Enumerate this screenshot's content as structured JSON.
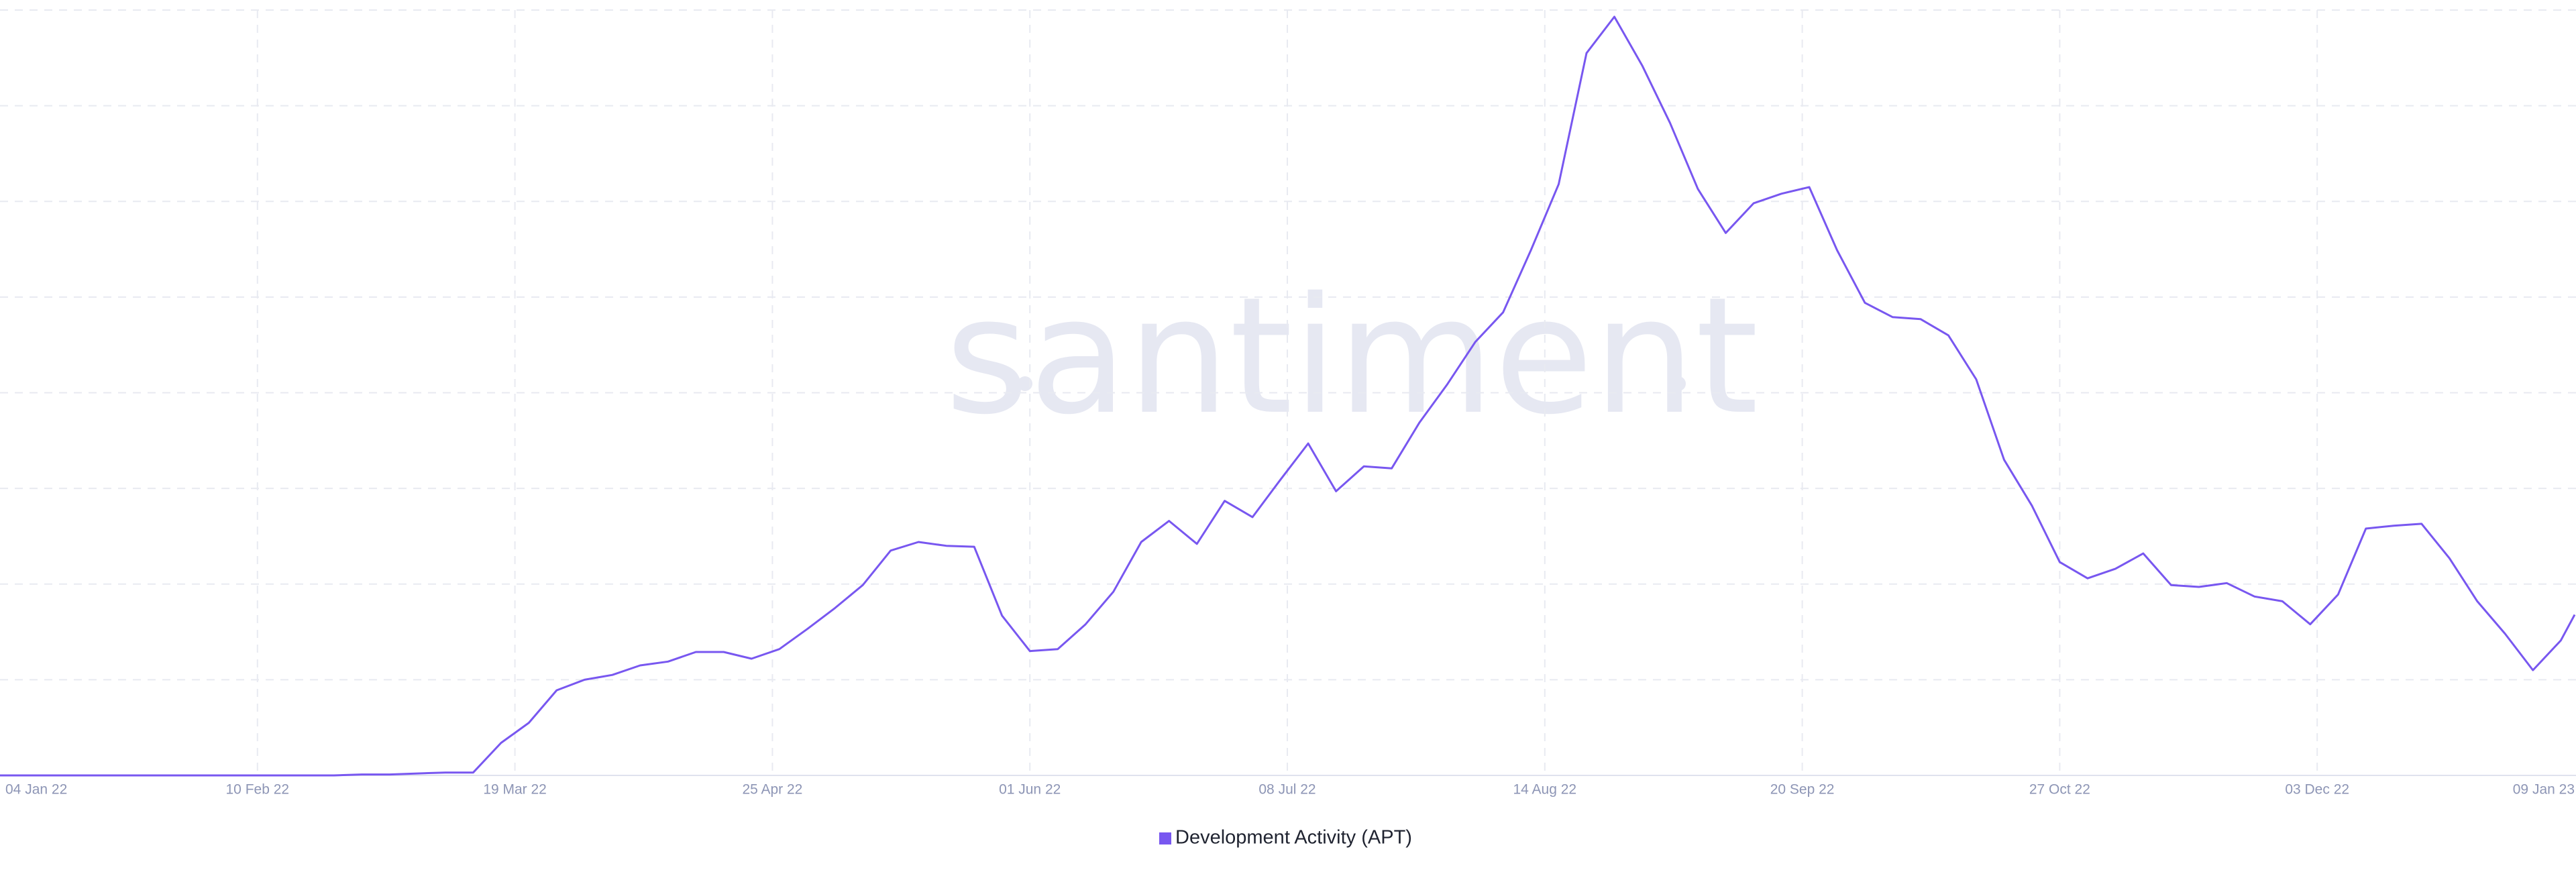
{
  "chart_data": {
    "type": "line",
    "watermark": "santiment",
    "x": [
      "04 Jan 22",
      "08 Jan 22",
      "12 Jan 22",
      "16 Jan 22",
      "20 Jan 22",
      "24 Jan 22",
      "28 Jan 22",
      "01 Feb 22",
      "05 Feb 22",
      "09 Feb 22",
      "13 Feb 22",
      "17 Feb 22",
      "21 Feb 22",
      "25 Feb 22",
      "01 Mar 22",
      "05 Mar 22",
      "09 Mar 22",
      "13 Mar 22",
      "17 Mar 22",
      "21 Mar 22",
      "25 Mar 22",
      "29 Mar 22",
      "02 Apr 22",
      "06 Apr 22",
      "10 Apr 22",
      "14 Apr 22",
      "18 Apr 22",
      "22 Apr 22",
      "26 Apr 22",
      "30 Apr 22",
      "04 May 22",
      "08 May 22",
      "12 May 22",
      "16 May 22",
      "20 May 22",
      "24 May 22",
      "28 May 22",
      "01 Jun 22",
      "05 Jun 22",
      "09 Jun 22",
      "13 Jun 22",
      "17 Jun 22",
      "21 Jun 22",
      "25 Jun 22",
      "29 Jun 22",
      "03 Jul 22",
      "07 Jul 22",
      "11 Jul 22",
      "15 Jul 22",
      "19 Jul 22",
      "23 Jul 22",
      "27 Jul 22",
      "31 Jul 22",
      "04 Aug 22",
      "08 Aug 22",
      "12 Aug 22",
      "16 Aug 22",
      "20 Aug 22",
      "24 Aug 22",
      "28 Aug 22",
      "01 Sep 22",
      "05 Sep 22",
      "09 Sep 22",
      "13 Sep 22",
      "17 Sep 22",
      "21 Sep 22",
      "25 Sep 22",
      "29 Sep 22",
      "03 Oct 22",
      "07 Oct 22",
      "11 Oct 22",
      "15 Oct 22",
      "19 Oct 22",
      "23 Oct 22",
      "27 Oct 22",
      "31 Oct 22",
      "04 Nov 22",
      "08 Nov 22",
      "12 Nov 22",
      "16 Nov 22",
      "20 Nov 22",
      "24 Nov 22",
      "28 Nov 22",
      "02 Dec 22",
      "06 Dec 22",
      "10 Dec 22",
      "14 Dec 22",
      "18 Dec 22",
      "22 Dec 22",
      "26 Dec 22",
      "30 Dec 22",
      "03 Jan 23",
      "07 Jan 23",
      "09 Jan 23"
    ],
    "series": [
      {
        "name": "Development Activity (APT)",
        "color": "#7857f0",
        "values": [
          0,
          0,
          0,
          0,
          0,
          0,
          0,
          0,
          0,
          0,
          0,
          0,
          0,
          1,
          1,
          2,
          3,
          3,
          34,
          55,
          89,
          100,
          105,
          115,
          119,
          129,
          129,
          122,
          132,
          153,
          175,
          199,
          235,
          244,
          240,
          239,
          167,
          130,
          132,
          158,
          192,
          244,
          266,
          242,
          287,
          270,
          309,
          347,
          297,
          323,
          321,
          369,
          409,
          453,
          484,
          549,
          618,
          755,
          793,
          742,
          682,
          613,
          567,
          598,
          608,
          615,
          549,
          494,
          479,
          477,
          460,
          414,
          330,
          282,
          223,
          206,
          216,
          232,
          199,
          197,
          201,
          187,
          182,
          158,
          189,
          258,
          261,
          263,
          227,
          182,
          148,
          110,
          141,
          168
        ]
      }
    ],
    "xlim": [
      "04 Jan 22",
      "09 Jan 23"
    ],
    "xticks": [
      "04 Jan 22",
      "10 Feb 22",
      "19 Mar 22",
      "25 Apr 22",
      "01 Jun 22",
      "08 Jul 22",
      "14 Aug 22",
      "20 Sep 22",
      "27 Oct 22",
      "03 Dec 22",
      "09 Jan 23"
    ],
    "ylim": [
      0,
      800
    ],
    "ygrid": [
      0,
      100,
      200,
      300,
      400,
      500,
      600,
      700,
      800
    ],
    "grid": true,
    "legend": "bottom"
  }
}
